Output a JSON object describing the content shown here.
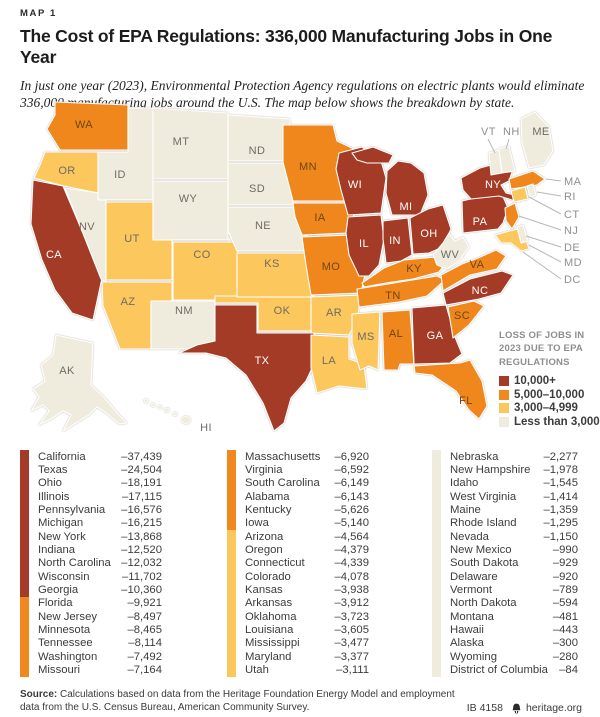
{
  "header": {
    "kicker": "MAP 1",
    "title": "The Cost of EPA Regulations: 336,000 Manufacturing Jobs in One Year",
    "subtitle": "In just one year (2023), Environmental Protection Agency regulations on electric plants would eliminate 336,000 manufacturing jobs around the U.S. The map below shows the breakdown by state."
  },
  "colors": {
    "tier1": "#A43A28",
    "tier2": "#F0871F",
    "tier3": "#FCC75D",
    "tier4": "#F0ECDD"
  },
  "label_colors": {
    "tier1": "#FFFFFF",
    "tier2": "#6F4512",
    "tier3": "#6D6C64",
    "tier4": "#6D6C64",
    "callout": "#8F8F8F"
  },
  "legend": {
    "title": "LOSS OF JOBS IN 2023 DUE TO EPA REGULATIONS",
    "items": [
      {
        "label": "10,000+",
        "tier": "tier1"
      },
      {
        "label": "5,000–10,000",
        "tier": "tier2"
      },
      {
        "label": "3,000–4,999",
        "tier": "tier3"
      },
      {
        "label": "Less than 3,000",
        "tier": "tier4"
      }
    ]
  },
  "map": {
    "states": [
      {
        "abbr": "WA",
        "tier": "tier2"
      },
      {
        "abbr": "OR",
        "tier": "tier3"
      },
      {
        "abbr": "CA",
        "tier": "tier1"
      },
      {
        "abbr": "NV",
        "tier": "tier4"
      },
      {
        "abbr": "ID",
        "tier": "tier4"
      },
      {
        "abbr": "UT",
        "tier": "tier3"
      },
      {
        "abbr": "AZ",
        "tier": "tier3"
      },
      {
        "abbr": "MT",
        "tier": "tier4"
      },
      {
        "abbr": "WY",
        "tier": "tier4"
      },
      {
        "abbr": "CO",
        "tier": "tier3"
      },
      {
        "abbr": "NM",
        "tier": "tier4"
      },
      {
        "abbr": "TX",
        "tier": "tier1"
      },
      {
        "abbr": "OK",
        "tier": "tier3"
      },
      {
        "abbr": "KS",
        "tier": "tier3"
      },
      {
        "abbr": "NE",
        "tier": "tier4"
      },
      {
        "abbr": "SD",
        "tier": "tier4"
      },
      {
        "abbr": "ND",
        "tier": "tier4"
      },
      {
        "abbr": "MN",
        "tier": "tier2"
      },
      {
        "abbr": "IA",
        "tier": "tier2"
      },
      {
        "abbr": "MO",
        "tier": "tier2"
      },
      {
        "abbr": "AR",
        "tier": "tier3"
      },
      {
        "abbr": "LA",
        "tier": "tier3"
      },
      {
        "abbr": "WI",
        "tier": "tier1"
      },
      {
        "abbr": "IL",
        "tier": "tier1"
      },
      {
        "abbr": "MI",
        "tier": "tier1"
      },
      {
        "abbr": "IN",
        "tier": "tier1"
      },
      {
        "abbr": "OH",
        "tier": "tier1"
      },
      {
        "abbr": "KY",
        "tier": "tier2"
      },
      {
        "abbr": "TN",
        "tier": "tier2"
      },
      {
        "abbr": "MS",
        "tier": "tier3"
      },
      {
        "abbr": "AL",
        "tier": "tier2"
      },
      {
        "abbr": "GA",
        "tier": "tier1"
      },
      {
        "abbr": "FL",
        "tier": "tier2"
      },
      {
        "abbr": "SC",
        "tier": "tier2"
      },
      {
        "abbr": "NC",
        "tier": "tier1"
      },
      {
        "abbr": "VA",
        "tier": "tier2"
      },
      {
        "abbr": "WV",
        "tier": "tier4"
      },
      {
        "abbr": "PA",
        "tier": "tier1"
      },
      {
        "abbr": "NY",
        "tier": "tier1"
      },
      {
        "abbr": "NJ",
        "tier": "tier2"
      },
      {
        "abbr": "MA",
        "tier": "tier2"
      },
      {
        "abbr": "CT",
        "tier": "tier3"
      },
      {
        "abbr": "RI",
        "tier": "tier4"
      },
      {
        "abbr": "VT",
        "tier": "tier4"
      },
      {
        "abbr": "NH",
        "tier": "tier4"
      },
      {
        "abbr": "ME",
        "tier": "tier4"
      },
      {
        "abbr": "MD",
        "tier": "tier3"
      },
      {
        "abbr": "DE",
        "tier": "tier4"
      },
      {
        "abbr": "AK",
        "tier": "tier4"
      },
      {
        "abbr": "HI",
        "tier": "tier4"
      }
    ],
    "callouts": [
      "VT",
      "NH",
      "MA",
      "RI",
      "CT",
      "NJ",
      "DE",
      "MD",
      "DC"
    ]
  },
  "table": {
    "columns": [
      [
        {
          "state": "California",
          "value": "–37,439",
          "tier": "tier1"
        },
        {
          "state": "Texas",
          "value": "–24,504",
          "tier": "tier1"
        },
        {
          "state": "Ohio",
          "value": "–18,191",
          "tier": "tier1"
        },
        {
          "state": "Illinois",
          "value": "–17,115",
          "tier": "tier1"
        },
        {
          "state": "Pennsylvania",
          "value": "–16,576",
          "tier": "tier1"
        },
        {
          "state": "Michigan",
          "value": "–16,215",
          "tier": "tier1"
        },
        {
          "state": "New York",
          "value": "–13,868",
          "tier": "tier1"
        },
        {
          "state": "Indiana",
          "value": "–12,520",
          "tier": "tier1"
        },
        {
          "state": "North Carolina",
          "value": "–12,032",
          "tier": "tier1"
        },
        {
          "state": "Wisconsin",
          "value": "–11,702",
          "tier": "tier1"
        },
        {
          "state": "Georgia",
          "value": "–10,360",
          "tier": "tier1"
        },
        {
          "state": "Florida",
          "value": "–9,921",
          "tier": "tier2"
        },
        {
          "state": "New Jersey",
          "value": "–8,497",
          "tier": "tier2"
        },
        {
          "state": "Minnesota",
          "value": "–8,465",
          "tier": "tier2"
        },
        {
          "state": "Tennessee",
          "value": "–8,114",
          "tier": "tier2"
        },
        {
          "state": "Washington",
          "value": "–7,492",
          "tier": "tier2"
        },
        {
          "state": "Missouri",
          "value": "–7,164",
          "tier": "tier2"
        }
      ],
      [
        {
          "state": "Massachusetts",
          "value": "–6,920",
          "tier": "tier2"
        },
        {
          "state": "Virginia",
          "value": "–6,592",
          "tier": "tier2"
        },
        {
          "state": "South Carolina",
          "value": "–6,149",
          "tier": "tier2"
        },
        {
          "state": "Alabama",
          "value": "–6,143",
          "tier": "tier2"
        },
        {
          "state": "Kentucky",
          "value": "–5,626",
          "tier": "tier2"
        },
        {
          "state": "Iowa",
          "value": "–5,140",
          "tier": "tier2"
        },
        {
          "state": "Arizona",
          "value": "–4,564",
          "tier": "tier3"
        },
        {
          "state": "Oregon",
          "value": "–4,379",
          "tier": "tier3"
        },
        {
          "state": "Connecticut",
          "value": "–4,339",
          "tier": "tier3"
        },
        {
          "state": "Colorado",
          "value": "–4,078",
          "tier": "tier3"
        },
        {
          "state": "Kansas",
          "value": "–3,938",
          "tier": "tier3"
        },
        {
          "state": "Arkansas",
          "value": "–3,912",
          "tier": "tier3"
        },
        {
          "state": "Oklahoma",
          "value": "–3,723",
          "tier": "tier3"
        },
        {
          "state": "Louisiana",
          "value": "–3,605",
          "tier": "tier3"
        },
        {
          "state": "Mississippi",
          "value": "–3,477",
          "tier": "tier3"
        },
        {
          "state": "Maryland",
          "value": "–3,377",
          "tier": "tier3"
        },
        {
          "state": "Utah",
          "value": "–3,111",
          "tier": "tier3"
        }
      ],
      [
        {
          "state": "Nebraska",
          "value": "–2,277",
          "tier": "tier4"
        },
        {
          "state": "New Hampshire",
          "value": "–1,978",
          "tier": "tier4"
        },
        {
          "state": "Idaho",
          "value": "–1,545",
          "tier": "tier4"
        },
        {
          "state": "West Virginia",
          "value": "–1,414",
          "tier": "tier4"
        },
        {
          "state": "Maine",
          "value": "–1,359",
          "tier": "tier4"
        },
        {
          "state": "Rhode Island",
          "value": "–1,295",
          "tier": "tier4"
        },
        {
          "state": "Nevada",
          "value": "–1,150",
          "tier": "tier4"
        },
        {
          "state": "New Mexico",
          "value": "–990",
          "tier": "tier4"
        },
        {
          "state": "South Dakota",
          "value": "–929",
          "tier": "tier4"
        },
        {
          "state": "Delaware",
          "value": "–920",
          "tier": "tier4"
        },
        {
          "state": "Vermont",
          "value": "–789",
          "tier": "tier4"
        },
        {
          "state": "North Dakota",
          "value": "–594",
          "tier": "tier4"
        },
        {
          "state": "Montana",
          "value": "–481",
          "tier": "tier4"
        },
        {
          "state": "Hawaii",
          "value": "–443",
          "tier": "tier4"
        },
        {
          "state": "Alaska",
          "value": "–300",
          "tier": "tier4"
        },
        {
          "state": "Wyoming",
          "value": "–280",
          "tier": "tier4"
        },
        {
          "state": "District of Columbia",
          "value": "–84",
          "tier": "tier4"
        }
      ]
    ]
  },
  "footer": {
    "source_label": "Source:",
    "source_text": " Calculations based on data from the Heritage Foundation Energy Model and employment data from the U.S. Census Bureau, American Community Survey.",
    "doc_id": "IB 4158",
    "site": "heritage.org"
  },
  "chart_data": {
    "type": "choropleth",
    "title": "The Cost of EPA Regulations: 336,000 Manufacturing Jobs in One Year",
    "unit": "manufacturing jobs lost in 2023 due to EPA regulations",
    "legend_title": "LOSS OF JOBS IN 2023 DUE TO EPA REGULATIONS",
    "bins": [
      {
        "label": "10,000+",
        "color": "#A43A28"
      },
      {
        "label": "5,000–10,000",
        "color": "#F0871F"
      },
      {
        "label": "3,000–4,999",
        "color": "#FCC75D"
      },
      {
        "label": "Less than 3,000",
        "color": "#F0ECDD"
      }
    ],
    "states": [
      {
        "name": "California",
        "abbr": "CA",
        "value": -37439
      },
      {
        "name": "Texas",
        "abbr": "TX",
        "value": -24504
      },
      {
        "name": "Ohio",
        "abbr": "OH",
        "value": -18191
      },
      {
        "name": "Illinois",
        "abbr": "IL",
        "value": -17115
      },
      {
        "name": "Pennsylvania",
        "abbr": "PA",
        "value": -16576
      },
      {
        "name": "Michigan",
        "abbr": "MI",
        "value": -16215
      },
      {
        "name": "New York",
        "abbr": "NY",
        "value": -13868
      },
      {
        "name": "Indiana",
        "abbr": "IN",
        "value": -12520
      },
      {
        "name": "North Carolina",
        "abbr": "NC",
        "value": -12032
      },
      {
        "name": "Wisconsin",
        "abbr": "WI",
        "value": -11702
      },
      {
        "name": "Georgia",
        "abbr": "GA",
        "value": -10360
      },
      {
        "name": "Florida",
        "abbr": "FL",
        "value": -9921
      },
      {
        "name": "New Jersey",
        "abbr": "NJ",
        "value": -8497
      },
      {
        "name": "Minnesota",
        "abbr": "MN",
        "value": -8465
      },
      {
        "name": "Tennessee",
        "abbr": "TN",
        "value": -8114
      },
      {
        "name": "Washington",
        "abbr": "WA",
        "value": -7492
      },
      {
        "name": "Missouri",
        "abbr": "MO",
        "value": -7164
      },
      {
        "name": "Massachusetts",
        "abbr": "MA",
        "value": -6920
      },
      {
        "name": "Virginia",
        "abbr": "VA",
        "value": -6592
      },
      {
        "name": "South Carolina",
        "abbr": "SC",
        "value": -6149
      },
      {
        "name": "Alabama",
        "abbr": "AL",
        "value": -6143
      },
      {
        "name": "Kentucky",
        "abbr": "KY",
        "value": -5626
      },
      {
        "name": "Iowa",
        "abbr": "IA",
        "value": -5140
      },
      {
        "name": "Arizona",
        "abbr": "AZ",
        "value": -4564
      },
      {
        "name": "Oregon",
        "abbr": "OR",
        "value": -4379
      },
      {
        "name": "Connecticut",
        "abbr": "CT",
        "value": -4339
      },
      {
        "name": "Colorado",
        "abbr": "CO",
        "value": -4078
      },
      {
        "name": "Kansas",
        "abbr": "KS",
        "value": -3938
      },
      {
        "name": "Arkansas",
        "abbr": "AR",
        "value": -3912
      },
      {
        "name": "Oklahoma",
        "abbr": "OK",
        "value": -3723
      },
      {
        "name": "Louisiana",
        "abbr": "LA",
        "value": -3605
      },
      {
        "name": "Mississippi",
        "abbr": "MS",
        "value": -3477
      },
      {
        "name": "Maryland",
        "abbr": "MD",
        "value": -3377
      },
      {
        "name": "Utah",
        "abbr": "UT",
        "value": -3111
      },
      {
        "name": "Nebraska",
        "abbr": "NE",
        "value": -2277
      },
      {
        "name": "New Hampshire",
        "abbr": "NH",
        "value": -1978
      },
      {
        "name": "Idaho",
        "abbr": "ID",
        "value": -1545
      },
      {
        "name": "West Virginia",
        "abbr": "WV",
        "value": -1414
      },
      {
        "name": "Maine",
        "abbr": "ME",
        "value": -1359
      },
      {
        "name": "Rhode Island",
        "abbr": "RI",
        "value": -1295
      },
      {
        "name": "Nevada",
        "abbr": "NV",
        "value": -1150
      },
      {
        "name": "New Mexico",
        "abbr": "NM",
        "value": -990
      },
      {
        "name": "South Dakota",
        "abbr": "SD",
        "value": -929
      },
      {
        "name": "Delaware",
        "abbr": "DE",
        "value": -920
      },
      {
        "name": "Vermont",
        "abbr": "VT",
        "value": -789
      },
      {
        "name": "North Dakota",
        "abbr": "ND",
        "value": -594
      },
      {
        "name": "Montana",
        "abbr": "MT",
        "value": -481
      },
      {
        "name": "Hawaii",
        "abbr": "HI",
        "value": -443
      },
      {
        "name": "Alaska",
        "abbr": "AK",
        "value": -300
      },
      {
        "name": "Wyoming",
        "abbr": "WY",
        "value": -280
      },
      {
        "name": "District of Columbia",
        "abbr": "DC",
        "value": -84
      }
    ]
  }
}
